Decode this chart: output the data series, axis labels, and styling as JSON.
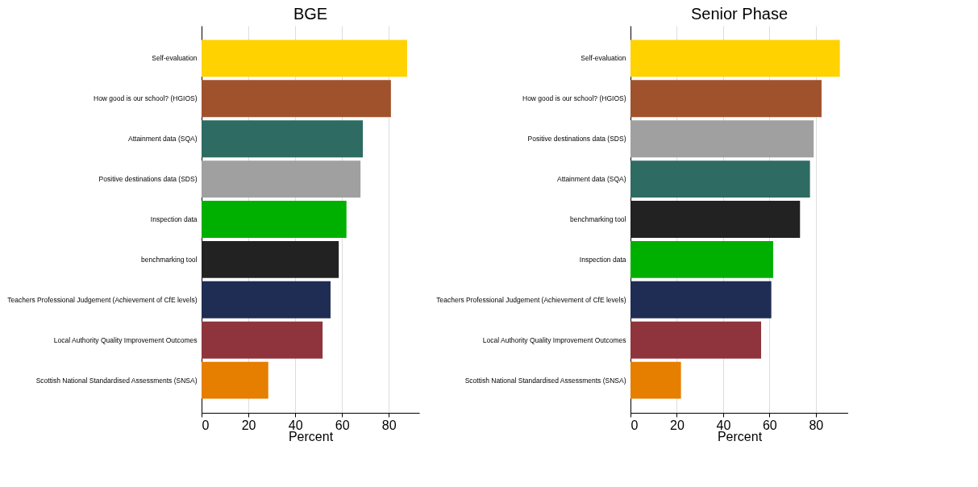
{
  "chart_data": [
    {
      "type": "bar",
      "orientation": "horizontal",
      "title": "BGE",
      "xlabel": "Percent",
      "grid": "x",
      "xlim": [
        0,
        93
      ],
      "xticks": [
        0,
        20,
        40,
        60,
        80
      ],
      "categories": [
        "Self-evaluation",
        "How good is our school? (HGIOS)",
        "Attainment data (SQA)",
        "Positive destinations data (SDS)",
        "Inspection data",
        "benchmarking tool",
        "Teachers Professional Judgement (Achievement of CfE levels)",
        "Local Authority Quality Improvement Outcomes",
        "Scottish National Standardised Assessments (SNSA)"
      ],
      "values": [
        87.8,
        80.9,
        68.9,
        67.9,
        61.9,
        58.6,
        55.1,
        51.7,
        28.5
      ],
      "colors": [
        "#ffd200",
        "#a0522d",
        "#2e6b63",
        "#a0a0a0",
        "#00b000",
        "#222222",
        "#1f2d54",
        "#8f343c",
        "#e67e00"
      ]
    },
    {
      "type": "bar",
      "orientation": "horizontal",
      "title": "Senior Phase",
      "xlabel": "Percent",
      "grid": "x",
      "xlim": [
        0,
        94
      ],
      "xticks": [
        0,
        20,
        40,
        60,
        80
      ],
      "categories": [
        "Self-evaluation",
        "How good is our school? (HGIOS)",
        "Positive destinations data (SDS)",
        "Attainment data (SQA)",
        "benchmarking tool",
        "Inspection data",
        "Teachers Professional Judgement (Achievement of CfE levels)",
        "Local Authority Quality Improvement Outcomes",
        "Scottish National Standardised Assessments (SNSA)"
      ],
      "values": [
        90.4,
        82.5,
        79.1,
        77.5,
        73.2,
        61.6,
        60.8,
        56.4,
        21.8
      ],
      "colors": [
        "#ffd200",
        "#a0522d",
        "#a0a0a0",
        "#2e6b63",
        "#222222",
        "#00b000",
        "#1f2d54",
        "#8f343c",
        "#e67e00"
      ]
    }
  ]
}
